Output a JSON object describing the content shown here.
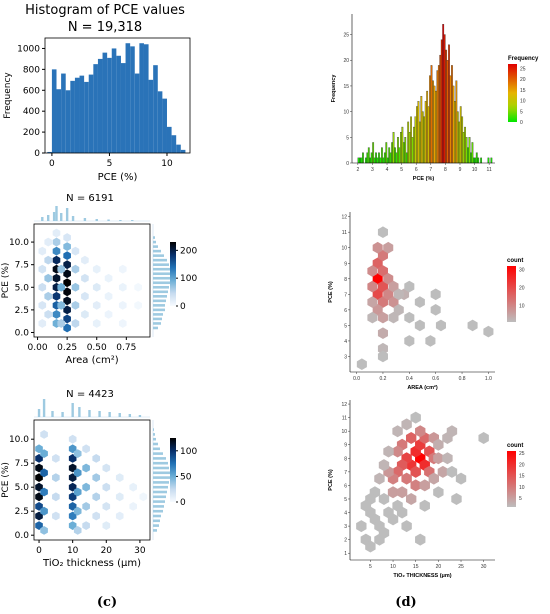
{
  "panel_labels": {
    "c": "(c)",
    "d": "(d)"
  },
  "colors": {
    "blue": "#1f77b4",
    "hist_blue": "#2a73b8",
    "rug_blue": "#9ecae1",
    "hex_gray": "#bdbdbd"
  },
  "chart_data": [
    {
      "id": "c1",
      "type": "bar",
      "title": "Histogram of PCE values",
      "subtitle": "N = 19,318",
      "xlabel": "PCE (%)",
      "ylabel": "Frequency",
      "xlim": [
        -0.6,
        12
      ],
      "ylim": [
        0,
        1100
      ],
      "xticks": [
        "0",
        "5",
        "10"
      ],
      "yticks": [
        "0",
        "200",
        "400",
        "600",
        "800",
        "1000"
      ],
      "bin_start": -0.4,
      "bin_width": 0.4,
      "values": [
        10,
        800,
        610,
        760,
        600,
        690,
        720,
        740,
        680,
        750,
        850,
        900,
        960,
        910,
        1000,
        930,
        860,
        1050,
        1020,
        760,
        1050,
        1040,
        700,
        840,
        590,
        520,
        250,
        170,
        80,
        30
      ]
    },
    {
      "id": "c2",
      "type": "heatmap",
      "subtitle": "N = 6191",
      "xlabel": "Area (cm²)",
      "ylabel": "PCE (%)",
      "xlim": [
        -0.03,
        0.95
      ],
      "ylim": [
        -0.5,
        12
      ],
      "xticks": [
        "0.00",
        "0.25",
        "0.50",
        "0.75"
      ],
      "yticks": [
        "0.0",
        "2.5",
        "5.0",
        "7.5",
        "10.0"
      ],
      "colorbar": {
        "ticks": [
          "0",
          "100",
          "200"
        ],
        "max": 230
      },
      "cells": [
        [
          0.16,
          1,
          90
        ],
        [
          0.16,
          2,
          120
        ],
        [
          0.16,
          3,
          150
        ],
        [
          0.16,
          4,
          180
        ],
        [
          0.16,
          5,
          200
        ],
        [
          0.16,
          6,
          210
        ],
        [
          0.16,
          7,
          220
        ],
        [
          0.16,
          8,
          190
        ],
        [
          0.16,
          9,
          120
        ],
        [
          0.16,
          10,
          60
        ],
        [
          0.16,
          11,
          20
        ],
        [
          0.25,
          0.5,
          140
        ],
        [
          0.25,
          1.5,
          170
        ],
        [
          0.25,
          2.5,
          200
        ],
        [
          0.25,
          3.5,
          215
        ],
        [
          0.25,
          4.5,
          225
        ],
        [
          0.25,
          5.5,
          230
        ],
        [
          0.25,
          6.5,
          220
        ],
        [
          0.25,
          7.5,
          200
        ],
        [
          0.25,
          8.5,
          140
        ],
        [
          0.25,
          9.5,
          80
        ],
        [
          0.25,
          10.5,
          30
        ],
        [
          0.04,
          1,
          20
        ],
        [
          0.04,
          3,
          30
        ],
        [
          0.04,
          5,
          40
        ],
        [
          0.04,
          7,
          35
        ],
        [
          0.04,
          9,
          20
        ],
        [
          0.09,
          2,
          40
        ],
        [
          0.09,
          4,
          60
        ],
        [
          0.09,
          6,
          70
        ],
        [
          0.09,
          8,
          50
        ],
        [
          0.09,
          10,
          20
        ],
        [
          0.2,
          1,
          60
        ],
        [
          0.2,
          3,
          80
        ],
        [
          0.2,
          5,
          90
        ],
        [
          0.2,
          7,
          70
        ],
        [
          0.32,
          1,
          50
        ],
        [
          0.32,
          3,
          60
        ],
        [
          0.32,
          5,
          70
        ],
        [
          0.32,
          7,
          60
        ],
        [
          0.32,
          9,
          30
        ],
        [
          0.4,
          2,
          25
        ],
        [
          0.4,
          4,
          30
        ],
        [
          0.4,
          6,
          35
        ],
        [
          0.4,
          8,
          20
        ],
        [
          0.5,
          1,
          15
        ],
        [
          0.5,
          3,
          20
        ],
        [
          0.5,
          5,
          25
        ],
        [
          0.5,
          7,
          15
        ],
        [
          0.6,
          2,
          10
        ],
        [
          0.6,
          4,
          12
        ],
        [
          0.6,
          6,
          12
        ],
        [
          0.72,
          1,
          8
        ],
        [
          0.72,
          3,
          10
        ],
        [
          0.72,
          5,
          12
        ],
        [
          0.72,
          7,
          8
        ],
        [
          0.85,
          3,
          5
        ],
        [
          0.85,
          5,
          5
        ]
      ]
    },
    {
      "id": "c3",
      "type": "heatmap",
      "subtitle": "N = 4423",
      "xlabel": "TiO₂ thickness (μm)",
      "ylabel": "PCE (%)",
      "xlim": [
        -1.5,
        33
      ],
      "ylim": [
        -0.5,
        12
      ],
      "xticks": [
        "0",
        "10",
        "20",
        "30"
      ],
      "yticks": [
        "0.0",
        "2.5",
        "5.0",
        "7.5",
        "10.0"
      ],
      "colorbar": {
        "ticks": [
          "0",
          "50",
          "100"
        ],
        "max": 125
      },
      "cells": [
        [
          0,
          1,
          80
        ],
        [
          0,
          2,
          110
        ],
        [
          0,
          3,
          90
        ],
        [
          0,
          4,
          120
        ],
        [
          0,
          5,
          115
        ],
        [
          0,
          6,
          125
        ],
        [
          0,
          7,
          120
        ],
        [
          0,
          8,
          100
        ],
        [
          0,
          9,
          50
        ],
        [
          1.5,
          0.5,
          40
        ],
        [
          1.5,
          2.5,
          60
        ],
        [
          1.5,
          4.5,
          70
        ],
        [
          1.5,
          6.5,
          80
        ],
        [
          1.5,
          8.5,
          50
        ],
        [
          1.5,
          10.5,
          20
        ],
        [
          10,
          1,
          50
        ],
        [
          10,
          2,
          70
        ],
        [
          10,
          3,
          80
        ],
        [
          10,
          4,
          95
        ],
        [
          10,
          5,
          105
        ],
        [
          10,
          6,
          110
        ],
        [
          10,
          7,
          115
        ],
        [
          10,
          8,
          100
        ],
        [
          10,
          9,
          60
        ],
        [
          10,
          10,
          20
        ],
        [
          11.5,
          0.5,
          30
        ],
        [
          11.5,
          2.5,
          45
        ],
        [
          11.5,
          4.5,
          55
        ],
        [
          11.5,
          6.5,
          60
        ],
        [
          11.5,
          8.5,
          40
        ],
        [
          5,
          2,
          20
        ],
        [
          5,
          4,
          25
        ],
        [
          5,
          6,
          30
        ],
        [
          5,
          8,
          20
        ],
        [
          14,
          1,
          25
        ],
        [
          14,
          3,
          35
        ],
        [
          14,
          5,
          45
        ],
        [
          14,
          7,
          45
        ],
        [
          14,
          9,
          20
        ],
        [
          17,
          2,
          20
        ],
        [
          17,
          4,
          30
        ],
        [
          17,
          6,
          35
        ],
        [
          17,
          8,
          25
        ],
        [
          20,
          1,
          12
        ],
        [
          20,
          3,
          18
        ],
        [
          20,
          5,
          22
        ],
        [
          20,
          7,
          18
        ],
        [
          24,
          2,
          10
        ],
        [
          24,
          4,
          12
        ],
        [
          24,
          6,
          12
        ],
        [
          28,
          3,
          6
        ],
        [
          28,
          5,
          8
        ],
        [
          31,
          4,
          4
        ]
      ]
    },
    {
      "id": "d1",
      "type": "bar",
      "xlabel": "PCE (%)",
      "ylabel": "Frequency",
      "xlim": [
        1.6,
        11.4
      ],
      "ylim": [
        0,
        29
      ],
      "xticks": [
        "2",
        "3",
        "4",
        "5",
        "6",
        "7",
        "8",
        "9",
        "10",
        "11"
      ],
      "yticks": [
        "0",
        "5",
        "10",
        "15",
        "20",
        "25"
      ],
      "legend_title": "Frequency",
      "legend_ticks": [
        "25",
        "20",
        "15",
        "10",
        "5",
        "0"
      ],
      "bin_start": 2.0,
      "bin_width": 0.1,
      "values": [
        1,
        1,
        1,
        2,
        0,
        1,
        2,
        3,
        1,
        2,
        4,
        1,
        2,
        1,
        2,
        1,
        3,
        1,
        2,
        4,
        1,
        3,
        2,
        4,
        6,
        3,
        2,
        5,
        3,
        6,
        7,
        4,
        5,
        2,
        8,
        6,
        9,
        5,
        7,
        9,
        11,
        12,
        8,
        13,
        10,
        9,
        12,
        14,
        11,
        17,
        19,
        16,
        15,
        14,
        18,
        19,
        21,
        24,
        27,
        25,
        22,
        20,
        23,
        17,
        19,
        15,
        12,
        16,
        10,
        8,
        11,
        9,
        6,
        7,
        5,
        3,
        5,
        2,
        4,
        1,
        1,
        2,
        1,
        0,
        1,
        0,
        0,
        0,
        0,
        1,
        0,
        1
      ]
    },
    {
      "id": "d2",
      "type": "heatmap",
      "xlabel": "AREA (cm²)",
      "ylabel": "PCE (%)",
      "xlim": [
        -0.05,
        1.05
      ],
      "ylim": [
        2,
        12.3
      ],
      "xticks": [
        "0.0",
        "0.2",
        "0.4",
        "0.6",
        "0.8",
        "1.0"
      ],
      "yticks": [
        "3",
        "4",
        "5",
        "6",
        "7",
        "8",
        "9",
        "10",
        "11",
        "12"
      ],
      "legend_title": "count",
      "legend_ticks": [
        "30",
        "20",
        "10"
      ],
      "legend_max": 32,
      "cells": [
        [
          0.16,
          8,
          32
        ],
        [
          0.16,
          7,
          20
        ],
        [
          0.16,
          9,
          16
        ],
        [
          0.2,
          7.5,
          18
        ],
        [
          0.2,
          8.5,
          14
        ],
        [
          0.12,
          7.5,
          10
        ],
        [
          0.12,
          8.5,
          9
        ],
        [
          0.2,
          9.5,
          12
        ],
        [
          0.16,
          10,
          8
        ],
        [
          0.24,
          10,
          6
        ],
        [
          0.2,
          6.5,
          12
        ],
        [
          0.24,
          7,
          10
        ],
        [
          0.24,
          8,
          9
        ],
        [
          0.16,
          6,
          7
        ],
        [
          0.28,
          6.5,
          8
        ],
        [
          0.28,
          7.5,
          6
        ],
        [
          0.12,
          6.5,
          5
        ],
        [
          0.2,
          5.5,
          6
        ],
        [
          0.2,
          4.5,
          4
        ],
        [
          0.2,
          3.5,
          2
        ],
        [
          0.2,
          3,
          1
        ],
        [
          0.2,
          11,
          1
        ],
        [
          0.28,
          5.5,
          2
        ],
        [
          0.32,
          6,
          2
        ],
        [
          0.36,
          7,
          3
        ],
        [
          0.32,
          7,
          2
        ],
        [
          0.4,
          5.5,
          1
        ],
        [
          0.4,
          7.5,
          1
        ],
        [
          0.48,
          6.5,
          1
        ],
        [
          0.48,
          5,
          1
        ],
        [
          0.6,
          6,
          1
        ],
        [
          0.6,
          7,
          1
        ],
        [
          0.64,
          5,
          1
        ],
        [
          0.4,
          4,
          1
        ],
        [
          0.56,
          4,
          1
        ],
        [
          0.04,
          2.5,
          1
        ],
        [
          0.88,
          5,
          1
        ],
        [
          1.0,
          4.6,
          1
        ],
        [
          0.12,
          5.5,
          2
        ]
      ]
    },
    {
      "id": "d3",
      "type": "heatmap",
      "xlabel": "TiO₂ THICKNESS (μm)",
      "ylabel": "PCE (%)",
      "xlim": [
        0.5,
        32.5
      ],
      "ylim": [
        0.5,
        12.3
      ],
      "xticks": [
        "5",
        "10",
        "15",
        "20",
        "25",
        "30"
      ],
      "yticks": [
        "1",
        "2",
        "3",
        "4",
        "5",
        "6",
        "7",
        "8",
        "9",
        "10",
        "11",
        "12"
      ],
      "legend_title": "count",
      "legend_ticks": [
        "25",
        "20",
        "15",
        "10",
        "5"
      ],
      "legend_max": 26,
      "cells": [
        [
          16,
          8,
          26
        ],
        [
          15,
          8.5,
          20
        ],
        [
          14,
          7.5,
          19
        ],
        [
          17,
          7.5,
          20
        ],
        [
          13,
          8,
          17
        ],
        [
          16,
          9,
          18
        ],
        [
          18,
          8.5,
          15
        ],
        [
          12,
          7.5,
          14
        ],
        [
          15,
          7,
          15
        ],
        [
          14,
          9.5,
          13
        ],
        [
          17,
          9.5,
          12
        ],
        [
          11,
          7,
          12
        ],
        [
          13,
          6.5,
          10
        ],
        [
          15,
          6,
          9
        ],
        [
          18,
          7,
          11
        ],
        [
          19,
          8,
          10
        ],
        [
          12,
          9,
          10
        ],
        [
          10,
          6.5,
          9
        ],
        [
          11,
          8.5,
          8
        ],
        [
          16,
          10,
          8
        ],
        [
          19,
          9.5,
          6
        ],
        [
          20,
          8,
          5
        ],
        [
          9,
          7,
          6
        ],
        [
          10,
          5.5,
          5
        ],
        [
          12,
          5.5,
          5
        ],
        [
          14,
          5,
          4
        ],
        [
          17,
          6,
          5
        ],
        [
          19,
          6.5,
          4
        ],
        [
          21,
          7,
          4
        ],
        [
          20,
          9,
          3
        ],
        [
          22,
          9.5,
          2
        ],
        [
          23,
          10,
          2
        ],
        [
          22,
          8,
          2
        ],
        [
          13,
          10.5,
          2
        ],
        [
          15,
          11,
          1
        ],
        [
          11,
          10,
          2
        ],
        [
          9,
          8.5,
          2
        ],
        [
          8,
          7.5,
          2
        ],
        [
          7,
          6.5,
          2
        ],
        [
          8,
          5,
          1
        ],
        [
          6,
          5.5,
          1
        ],
        [
          5,
          5,
          1
        ],
        [
          5,
          4,
          1
        ],
        [
          4,
          4.5,
          1
        ],
        [
          3,
          3,
          1
        ],
        [
          4,
          2,
          1
        ],
        [
          5,
          1.5,
          1
        ],
        [
          6,
          3.5,
          1
        ],
        [
          7,
          3,
          1
        ],
        [
          7,
          2,
          1
        ],
        [
          8,
          2.5,
          1
        ],
        [
          10,
          3.5,
          1
        ],
        [
          12,
          4,
          1
        ],
        [
          13,
          3,
          1
        ],
        [
          9,
          4,
          1
        ],
        [
          24,
          5,
          1
        ],
        [
          23,
          7,
          1
        ],
        [
          25,
          6.5,
          1
        ],
        [
          30,
          9.5,
          1
        ],
        [
          17,
          4.5,
          1
        ],
        [
          16,
          2,
          1
        ],
        [
          20,
          5.5,
          1
        ],
        [
          11,
          4.5,
          1
        ]
      ]
    }
  ]
}
